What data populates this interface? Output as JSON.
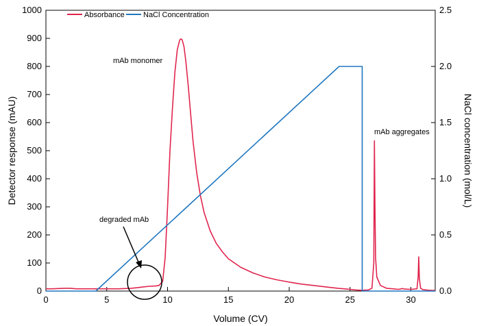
{
  "chart_data": {
    "type": "line",
    "title": "",
    "xlabel": "Volume (CV)",
    "ylabel": "Detector response (mAU)",
    "y2label": "NaCl concentration (mol/L)",
    "xlim": [
      0,
      32
    ],
    "ylim": [
      0,
      1000
    ],
    "y2lim": [
      0,
      2.5
    ],
    "x_ticks": [
      0,
      5,
      10,
      15,
      20,
      25,
      30
    ],
    "y_ticks": [
      0,
      100,
      200,
      300,
      400,
      500,
      600,
      700,
      800,
      900,
      1000
    ],
    "y2_ticks": [
      "0.0",
      "0.5",
      "1.0",
      "1.5",
      "2.0",
      "2.5"
    ],
    "legend_position": "top-left",
    "grid": false,
    "series": [
      {
        "name": "Absorbance",
        "axis": "left",
        "color": "#e0244d",
        "x": [
          0,
          0.5,
          1.0,
          1.5,
          2.0,
          2.5,
          3,
          4,
          5,
          6,
          7,
          7.5,
          8,
          8.5,
          9,
          9.3,
          9.6,
          9.8,
          10.0,
          10.2,
          10.4,
          10.6,
          10.8,
          11.0,
          11.1,
          11.2,
          11.35,
          11.5,
          11.7,
          11.9,
          12.1,
          12.4,
          12.7,
          13.0,
          13.5,
          14.0,
          14.5,
          15,
          16,
          17,
          18,
          19,
          20,
          21,
          22,
          23,
          24,
          25,
          25.5,
          25.9,
          26.0,
          26.5,
          26.8,
          26.95,
          27.0,
          27.05,
          27.1,
          27.2,
          27.5,
          28,
          28.5,
          29,
          29.3,
          29.5,
          30,
          30.5,
          30.6,
          30.65,
          30.7,
          30.8,
          31,
          31.5,
          32
        ],
        "values": [
          8,
          8,
          9,
          10,
          10,
          8,
          8,
          8,
          8,
          8,
          10,
          12,
          15,
          17,
          18,
          20,
          35,
          120,
          300,
          500,
          650,
          780,
          860,
          895,
          898,
          895,
          870,
          820,
          730,
          630,
          530,
          420,
          340,
          280,
          215,
          170,
          140,
          115,
          85,
          65,
          50,
          40,
          32,
          25,
          20,
          15,
          10,
          6,
          4,
          3,
          3,
          4,
          10,
          100,
          535,
          300,
          120,
          50,
          20,
          10,
          8,
          6,
          9,
          7,
          6,
          8,
          50,
          122,
          45,
          10,
          5,
          3,
          2
        ]
      },
      {
        "name": "NaCl Concentration",
        "axis": "right",
        "color": "#1f77c0",
        "x": [
          0,
          4.1,
          24.1,
          26.0,
          26.0,
          32
        ],
        "values": [
          0,
          0,
          2.0,
          2.0,
          0,
          0
        ]
      }
    ],
    "annotations": [
      {
        "text": "mAb monomer",
        "x": 11.1,
        "y": 898
      },
      {
        "text": "mAb aggregates",
        "x": 27.0,
        "y": 535
      },
      {
        "text": "degraded mAb",
        "x": 8.0,
        "y": 15
      }
    ]
  }
}
